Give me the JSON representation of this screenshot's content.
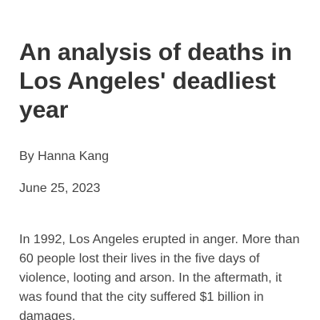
{
  "article": {
    "title": "An analysis of deaths in Los Angeles' deadliest year",
    "byline": "By Hanna Kang",
    "date": "June 25, 2023",
    "paragraphs": [
      "In 1992, Los Angeles erupted in anger. More than 60 people lost their lives in the five days of violence, looting and arson. In the aftermath, it was found that the city suffered $1 billion in damages."
    ]
  }
}
